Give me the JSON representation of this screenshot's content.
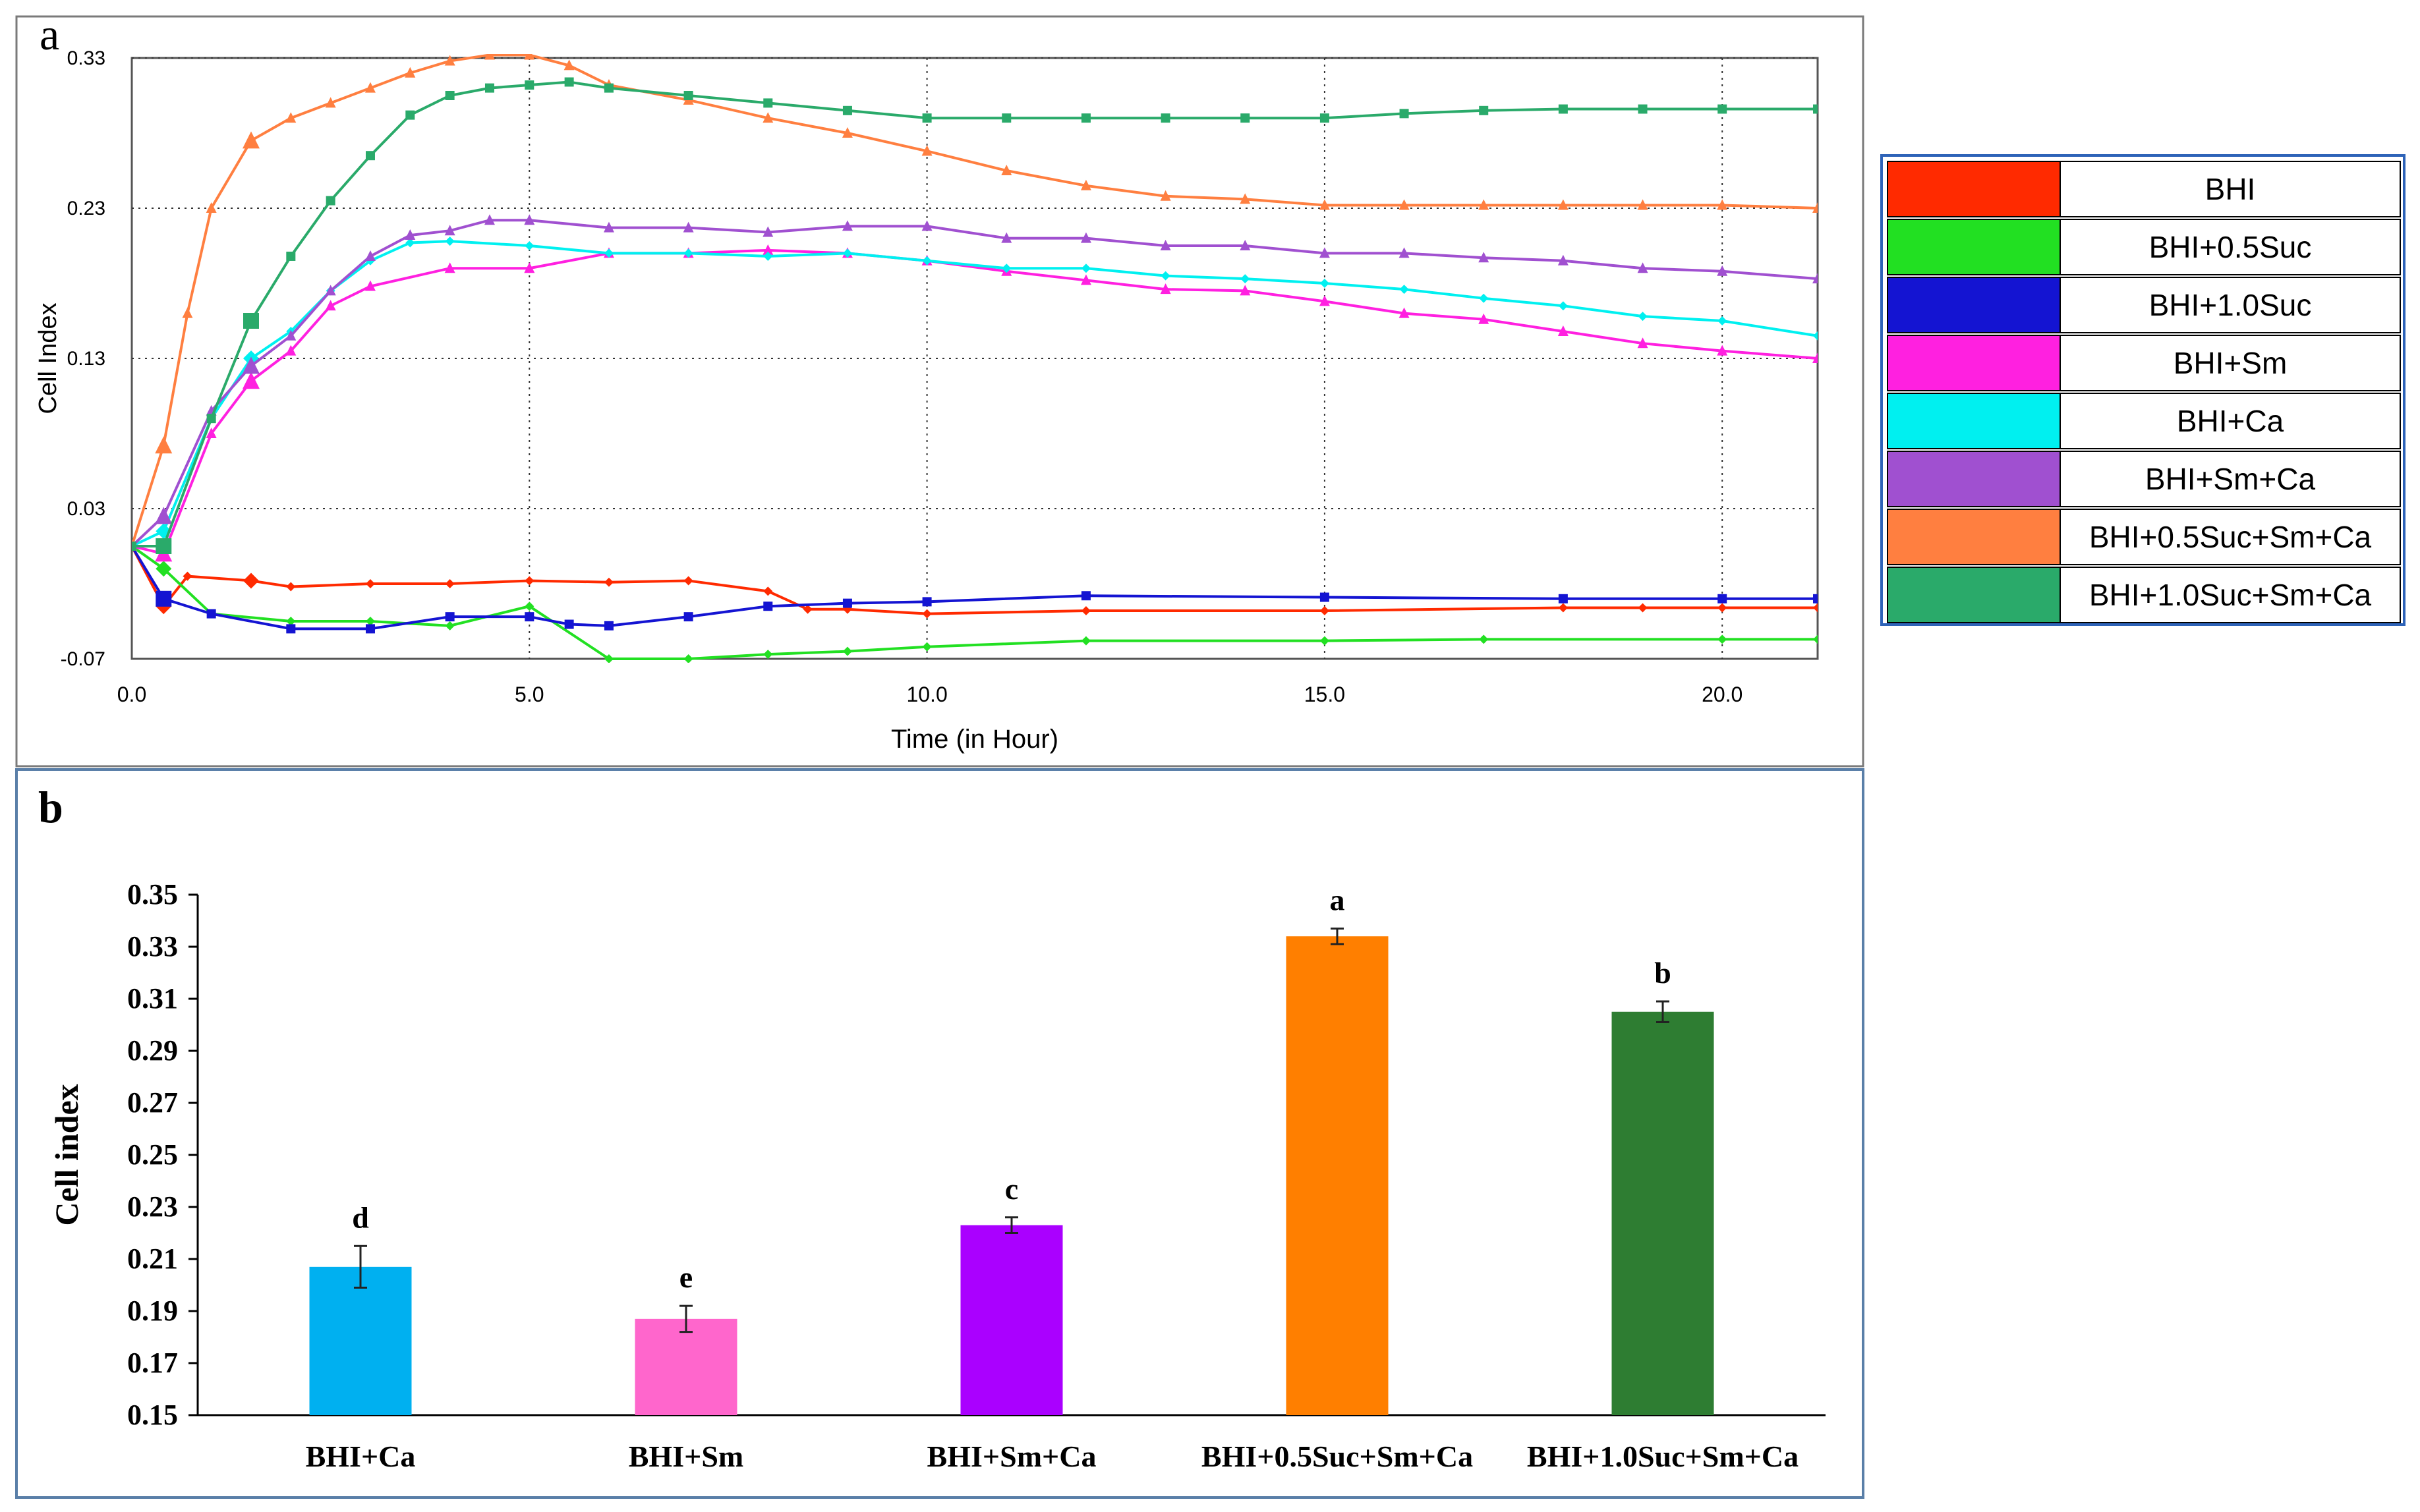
{
  "panel_a": {
    "label": "a",
    "chart_data": {
      "type": "line",
      "xlabel": "Time (in Hour)",
      "ylabel": "Cell Index",
      "xlim": [
        0,
        21.2
      ],
      "ylim": [
        -0.07,
        0.33
      ],
      "x_ticks": [
        "0.0",
        "5.0",
        "10.0",
        "15.0",
        "20.0"
      ],
      "y_ticks": [
        "0.33",
        "0.23",
        "0.13",
        "0.03",
        "-0.07"
      ],
      "grid": true,
      "legend_position": "right",
      "series": [
        {
          "name": "BHI",
          "color": "#ff2a00",
          "x": [
            0,
            0.4,
            0.7,
            1.5,
            2,
            3,
            4,
            5,
            6,
            7,
            8,
            8.5,
            9,
            10,
            12,
            15,
            18,
            19,
            20,
            21.2
          ],
          "y": [
            0.005,
            -0.035,
            -0.015,
            -0.018,
            -0.022,
            -0.02,
            -0.02,
            -0.018,
            -0.019,
            -0.018,
            -0.025,
            -0.037,
            -0.037,
            -0.04,
            -0.038,
            -0.038,
            -0.036,
            -0.036,
            -0.036,
            -0.036
          ]
        },
        {
          "name": "BHI+0.5Suc",
          "color": "#22e022",
          "x": [
            0,
            0.4,
            1,
            2,
            3,
            4,
            5,
            6,
            7,
            8,
            9,
            10,
            12,
            15,
            17,
            20,
            21.2
          ],
          "y": [
            0.005,
            -0.01,
            -0.04,
            -0.045,
            -0.045,
            -0.048,
            -0.035,
            -0.07,
            -0.07,
            -0.067,
            -0.065,
            -0.062,
            -0.058,
            -0.058,
            -0.057,
            -0.057,
            -0.057
          ]
        },
        {
          "name": "BHI+1.0Suc",
          "color": "#1414d2",
          "x": [
            0,
            0.4,
            1,
            2,
            3,
            4,
            5,
            5.5,
            6,
            7,
            8,
            9,
            10,
            12,
            15,
            18,
            20,
            21.2
          ],
          "y": [
            0.005,
            -0.03,
            -0.04,
            -0.05,
            -0.05,
            -0.042,
            -0.042,
            -0.047,
            -0.048,
            -0.042,
            -0.035,
            -0.033,
            -0.032,
            -0.028,
            -0.029,
            -0.03,
            -0.03,
            -0.03
          ]
        },
        {
          "name": "BHI+Sm",
          "color": "#ff20e0",
          "x": [
            0,
            0.4,
            1,
            1.5,
            2,
            2.5,
            3,
            4,
            5,
            6,
            7,
            8,
            9,
            10,
            11,
            12,
            13,
            14,
            15,
            16,
            17,
            18,
            19,
            20,
            21.2
          ],
          "y": [
            0.005,
            0.0,
            0.08,
            0.115,
            0.135,
            0.165,
            0.178,
            0.19,
            0.19,
            0.2,
            0.2,
            0.202,
            0.2,
            0.195,
            0.188,
            0.182,
            0.176,
            0.175,
            0.168,
            0.16,
            0.156,
            0.148,
            0.14,
            0.135,
            0.13
          ]
        },
        {
          "name": "BHI+Ca",
          "color": "#00f0f0",
          "x": [
            0,
            0.4,
            1,
            1.5,
            2,
            2.5,
            3,
            3.5,
            4,
            5,
            6,
            7,
            8,
            9,
            10,
            11,
            12,
            13,
            14,
            15,
            16,
            17,
            18,
            19,
            20,
            21.2
          ],
          "y": [
            0.005,
            0.015,
            0.09,
            0.13,
            0.148,
            0.175,
            0.195,
            0.207,
            0.208,
            0.205,
            0.2,
            0.2,
            0.198,
            0.2,
            0.195,
            0.19,
            0.19,
            0.185,
            0.183,
            0.18,
            0.176,
            0.17,
            0.165,
            0.158,
            0.155,
            0.145
          ]
        },
        {
          "name": "BHI+Sm+Ca",
          "color": "#a050d0",
          "x": [
            0,
            0.4,
            1,
            1.5,
            2,
            2.5,
            3,
            3.5,
            4,
            4.5,
            5,
            6,
            7,
            8,
            9,
            10,
            11,
            12,
            13,
            14,
            15,
            16,
            17,
            18,
            19,
            20,
            21.2
          ],
          "y": [
            0.005,
            0.025,
            0.095,
            0.125,
            0.145,
            0.175,
            0.198,
            0.212,
            0.215,
            0.222,
            0.222,
            0.217,
            0.217,
            0.214,
            0.218,
            0.218,
            0.21,
            0.21,
            0.205,
            0.205,
            0.2,
            0.2,
            0.197,
            0.195,
            0.19,
            0.188,
            0.183
          ]
        },
        {
          "name": "BHI+0.5Suc+Sm+Ca",
          "color": "#ff7f40",
          "x": [
            0,
            0.4,
            0.7,
            1,
            1.5,
            2,
            2.5,
            3,
            3.5,
            4,
            4.5,
            5,
            5.5,
            6,
            7,
            8,
            9,
            10,
            11,
            12,
            13,
            14,
            15,
            16,
            17,
            18,
            19,
            20,
            21.2
          ],
          "y": [
            0.005,
            0.072,
            0.16,
            0.23,
            0.275,
            0.29,
            0.3,
            0.31,
            0.32,
            0.328,
            0.332,
            0.332,
            0.325,
            0.312,
            0.302,
            0.29,
            0.28,
            0.268,
            0.255,
            0.245,
            0.238,
            0.236,
            0.232,
            0.232,
            0.232,
            0.232,
            0.232,
            0.232,
            0.23
          ]
        },
        {
          "name": "BHI+1.0Suc+Sm+Ca",
          "color": "#2aaa6a",
          "x": [
            0,
            0.4,
            1,
            1.5,
            2,
            2.5,
            3,
            3.5,
            4,
            4.5,
            5,
            5.5,
            6,
            7,
            8,
            9,
            10,
            11,
            12,
            13,
            14,
            15,
            16,
            17,
            18,
            19,
            20,
            21.2
          ],
          "y": [
            0.005,
            0.005,
            0.09,
            0.155,
            0.198,
            0.235,
            0.265,
            0.292,
            0.305,
            0.31,
            0.312,
            0.314,
            0.31,
            0.305,
            0.3,
            0.295,
            0.29,
            0.29,
            0.29,
            0.29,
            0.29,
            0.29,
            0.293,
            0.295,
            0.296,
            0.296,
            0.296,
            0.296
          ]
        }
      ]
    }
  },
  "panel_b": {
    "label": "b",
    "chart_data": {
      "type": "bar",
      "ylabel": "Cell index",
      "ylim": [
        0.15,
        0.35
      ],
      "y_ticks": [
        "0.35",
        "0.33",
        "0.31",
        "0.29",
        "0.27",
        "0.25",
        "0.23",
        "0.21",
        "0.19",
        "0.17",
        "0.15"
      ],
      "categories": [
        "BHI+Ca",
        "BHI+Sm",
        "BHI+Sm+Ca",
        "BHI+0.5Suc+Sm+Ca",
        "BHI+1.0Suc+Sm+Ca"
      ],
      "values": [
        0.207,
        0.187,
        0.223,
        0.334,
        0.305
      ],
      "errors": [
        0.008,
        0.005,
        0.003,
        0.003,
        0.004
      ],
      "significance_letters": [
        "d",
        "e",
        "c",
        "a",
        "b"
      ],
      "colors": [
        "#00b0f0",
        "#ff66cc",
        "#aa00ff",
        "#ff7f00",
        "#2e7d32"
      ]
    }
  }
}
